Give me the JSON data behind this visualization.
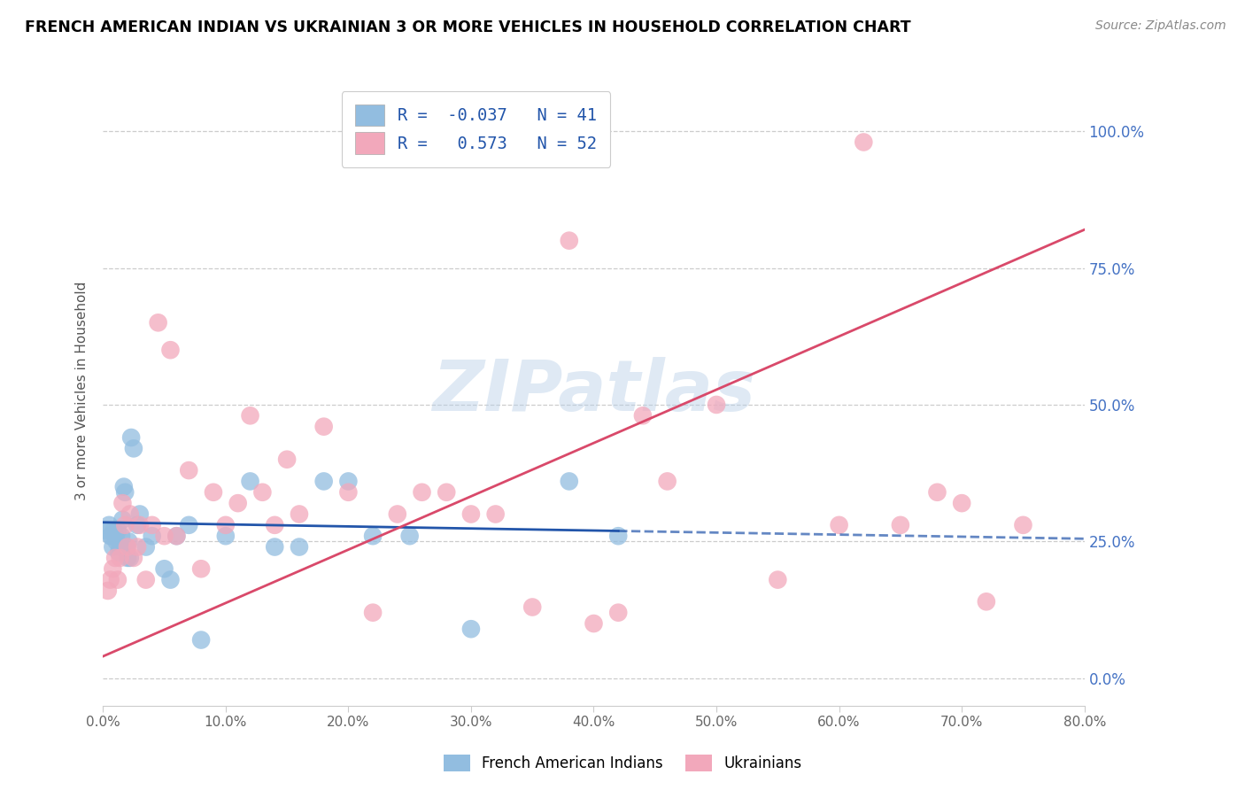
{
  "title": "FRENCH AMERICAN INDIAN VS UKRAINIAN 3 OR MORE VEHICLES IN HOUSEHOLD CORRELATION CHART",
  "source": "Source: ZipAtlas.com",
  "ylabel": "3 or more Vehicles in Household",
  "xlim": [
    0.0,
    80.0
  ],
  "ylim": [
    -5.0,
    110.0
  ],
  "xticks": [
    0.0,
    10.0,
    20.0,
    30.0,
    40.0,
    50.0,
    60.0,
    70.0,
    80.0
  ],
  "yticks": [
    0.0,
    25.0,
    50.0,
    75.0,
    100.0
  ],
  "blue_R": -0.037,
  "blue_N": 41,
  "pink_R": 0.573,
  "pink_N": 52,
  "blue_color": "#92bde0",
  "pink_color": "#f2a8bb",
  "blue_line_color": "#2255aa",
  "pink_line_color": "#d9496a",
  "watermark": "ZIPatlas",
  "legend_label_blue": "French American Indians",
  "legend_label_pink": "Ukrainians",
  "blue_scatter_x": [
    0.3,
    0.5,
    0.6,
    0.7,
    0.8,
    0.9,
    1.0,
    1.1,
    1.2,
    1.3,
    1.4,
    1.5,
    1.6,
    1.7,
    1.8,
    1.9,
    2.0,
    2.1,
    2.2,
    2.3,
    2.5,
    2.8,
    3.0,
    3.5,
    4.0,
    5.0,
    5.5,
    6.0,
    7.0,
    8.0,
    10.0,
    12.0,
    14.0,
    16.0,
    18.0,
    20.0,
    22.0,
    25.0,
    30.0,
    38.0,
    42.0
  ],
  "blue_scatter_y": [
    27.0,
    28.0,
    26.0,
    26.0,
    24.0,
    27.0,
    26.0,
    25.0,
    27.0,
    23.0,
    24.0,
    26.0,
    29.0,
    35.0,
    34.0,
    24.0,
    22.0,
    25.0,
    22.0,
    44.0,
    42.0,
    28.0,
    30.0,
    24.0,
    26.0,
    20.0,
    18.0,
    26.0,
    28.0,
    7.0,
    26.0,
    36.0,
    24.0,
    24.0,
    36.0,
    36.0,
    26.0,
    26.0,
    9.0,
    36.0,
    26.0
  ],
  "pink_scatter_x": [
    0.4,
    0.6,
    0.8,
    1.0,
    1.2,
    1.4,
    1.6,
    1.8,
    2.0,
    2.2,
    2.5,
    2.8,
    3.0,
    3.5,
    4.0,
    4.5,
    5.0,
    5.5,
    6.0,
    7.0,
    8.0,
    9.0,
    10.0,
    11.0,
    12.0,
    13.0,
    14.0,
    15.0,
    16.0,
    18.0,
    20.0,
    22.0,
    24.0,
    26.0,
    28.0,
    30.0,
    32.0,
    35.0,
    38.0,
    40.0,
    42.0,
    44.0,
    46.0,
    50.0,
    55.0,
    60.0,
    62.0,
    65.0,
    68.0,
    70.0,
    72.0,
    75.0
  ],
  "pink_scatter_y": [
    16.0,
    18.0,
    20.0,
    22.0,
    18.0,
    22.0,
    32.0,
    28.0,
    24.0,
    30.0,
    22.0,
    24.0,
    28.0,
    18.0,
    28.0,
    65.0,
    26.0,
    60.0,
    26.0,
    38.0,
    20.0,
    34.0,
    28.0,
    32.0,
    48.0,
    34.0,
    28.0,
    40.0,
    30.0,
    46.0,
    34.0,
    12.0,
    30.0,
    34.0,
    34.0,
    30.0,
    30.0,
    13.0,
    80.0,
    10.0,
    12.0,
    48.0,
    36.0,
    50.0,
    18.0,
    28.0,
    98.0,
    28.0,
    34.0,
    32.0,
    14.0,
    28.0
  ],
  "blue_solid_end_x": 42.0,
  "pink_line_x0": 0.0,
  "pink_line_y0": 4.0,
  "pink_line_x1": 80.0,
  "pink_line_y1": 82.0,
  "blue_line_x0": 0.0,
  "blue_line_y0": 28.5,
  "blue_line_x1": 80.0,
  "blue_line_y1": 25.5
}
